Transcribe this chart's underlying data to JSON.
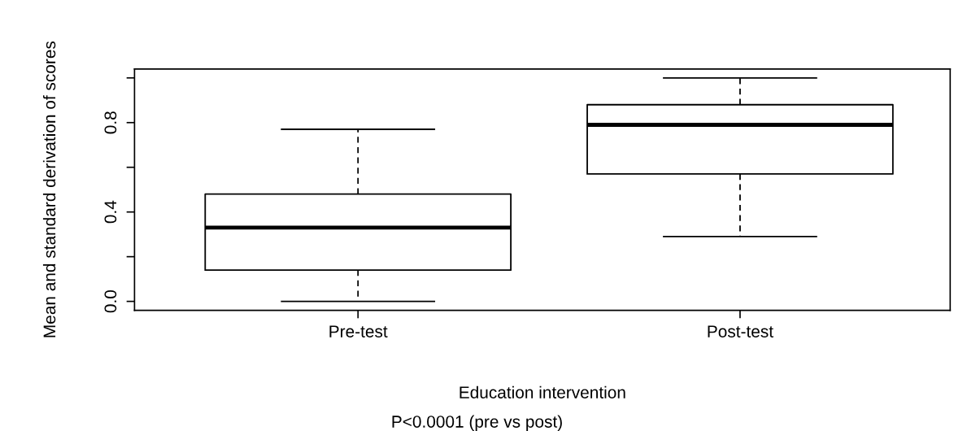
{
  "chart_data": {
    "type": "box",
    "categories": [
      "Pre-test",
      "Post-test"
    ],
    "boxes": [
      {
        "low": 0.0,
        "q1": 0.14,
        "median": 0.33,
        "q3": 0.48,
        "high": 0.77
      },
      {
        "low": 0.29,
        "q1": 0.57,
        "median": 0.79,
        "q3": 0.88,
        "high": 1.0
      }
    ],
    "color": "#000000",
    "xlabel": "Education intervention",
    "ylabel": "Mean and standard derivation of scores",
    "annotations": [
      "P<0.0001 (pre vs post)"
    ],
    "ylim": [
      -0.04,
      1.04
    ],
    "yticks": [
      {
        "value": 0.0,
        "label": "0.0"
      },
      {
        "value": 0.2,
        "label": null
      },
      0.4,
      {
        "value": 0.6,
        "label": null
      },
      0.8,
      {
        "value": 1.0,
        "label": null
      }
    ],
    "grid": false
  }
}
